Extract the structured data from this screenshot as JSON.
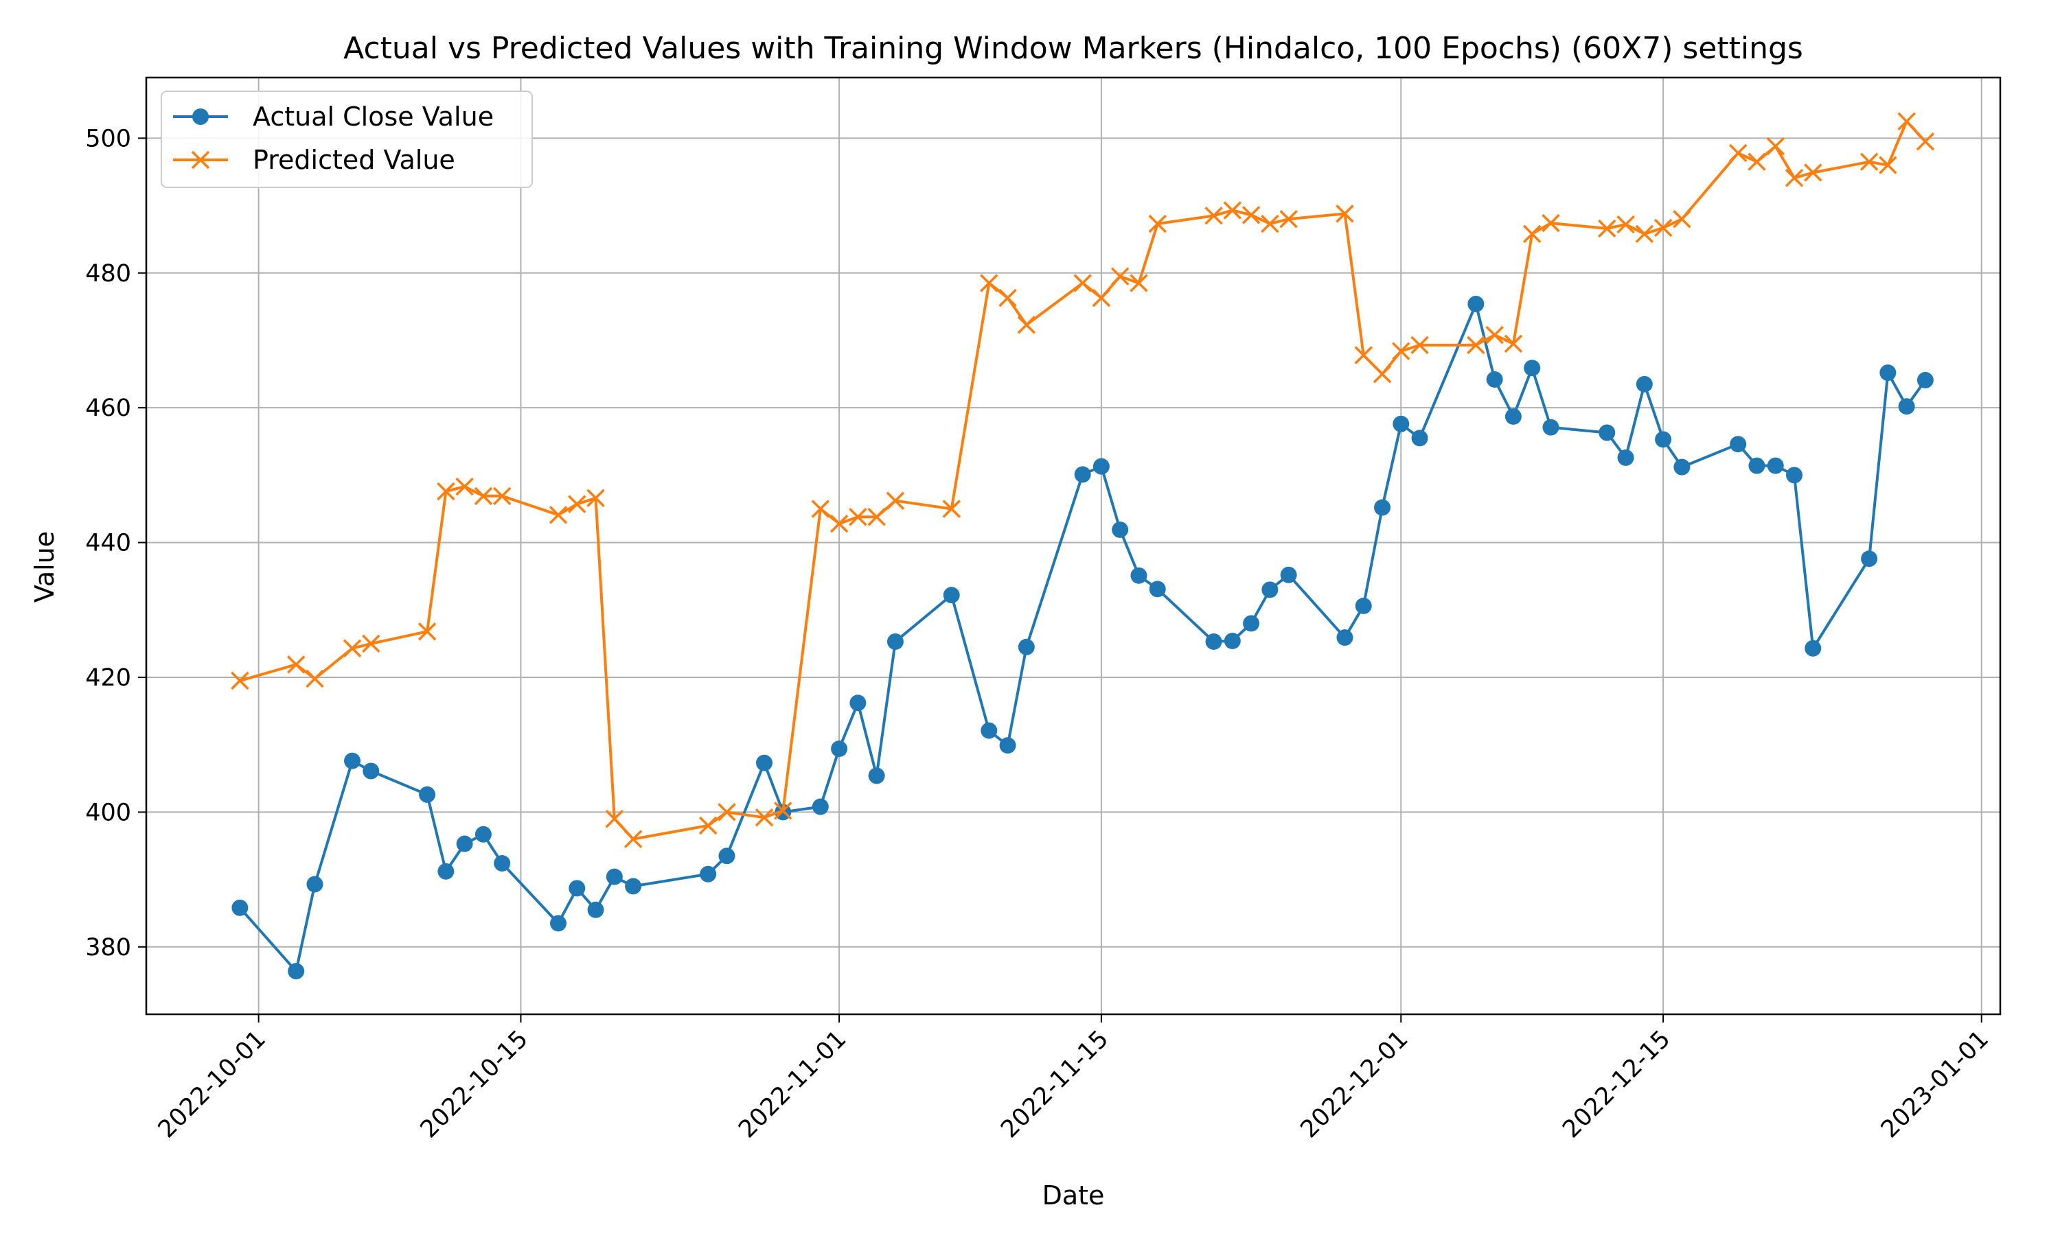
{
  "chart_data": {
    "type": "line",
    "title": "Actual vs Predicted Values with Training Window Markers (Hindalco, 100 Epochs) (60X7) settings",
    "xlabel": "Date",
    "ylabel": "Value",
    "x_tick_labels": [
      "2022-10-01",
      "2022-10-15",
      "2022-11-01",
      "2022-11-15",
      "2022-12-01",
      "2022-12-15",
      "2023-01-01"
    ],
    "y_ticks": [
      380,
      400,
      420,
      440,
      460,
      480,
      500
    ],
    "xlim": [
      "2022-09-25",
      "2023-01-02"
    ],
    "ylim": [
      370,
      509
    ],
    "grid": true,
    "legend_position": "upper-left",
    "x": [
      "2022-09-30",
      "2022-10-03",
      "2022-10-04",
      "2022-10-06",
      "2022-10-07",
      "2022-10-10",
      "2022-10-11",
      "2022-10-12",
      "2022-10-13",
      "2022-10-14",
      "2022-10-17",
      "2022-10-18",
      "2022-10-19",
      "2022-10-20",
      "2022-10-21",
      "2022-10-25",
      "2022-10-26",
      "2022-10-28",
      "2022-10-29",
      "2022-10-31",
      "2022-11-01",
      "2022-11-02",
      "2022-11-03",
      "2022-11-04",
      "2022-11-07",
      "2022-11-09",
      "2022-11-10",
      "2022-11-11",
      "2022-11-14",
      "2022-11-15",
      "2022-11-16",
      "2022-11-17",
      "2022-11-18",
      "2022-11-21",
      "2022-11-22",
      "2022-11-23",
      "2022-11-24",
      "2022-11-25",
      "2022-11-28",
      "2022-11-29",
      "2022-11-30",
      "2022-12-01",
      "2022-12-02",
      "2022-12-05",
      "2022-12-06",
      "2022-12-07",
      "2022-12-08",
      "2022-12-09",
      "2022-12-12",
      "2022-12-13",
      "2022-12-14",
      "2022-12-15",
      "2022-12-16",
      "2022-12-19",
      "2022-12-20",
      "2022-12-21",
      "2022-12-22",
      "2022-12-23",
      "2022-12-26",
      "2022-12-27",
      "2022-12-28",
      "2022-12-29"
    ],
    "series": [
      {
        "name": "Actual Close Value",
        "color": "#1f77b4",
        "marker": "circle",
        "values": [
          385.8,
          376.4,
          389.3,
          407.6,
          406.1,
          402.6,
          391.2,
          395.3,
          396.7,
          392.4,
          383.5,
          388.7,
          385.5,
          390.4,
          389.0,
          390.8,
          393.5,
          407.3,
          400.0,
          400.8,
          409.4,
          416.2,
          405.4,
          425.3,
          432.2,
          412.1,
          409.9,
          424.5,
          450.1,
          451.3,
          441.9,
          435.1,
          433.1,
          425.3,
          425.4,
          428.0,
          433.0,
          435.2,
          425.9,
          430.6,
          445.2,
          457.6,
          455.5,
          475.4,
          464.2,
          458.7,
          465.9,
          457.1,
          456.3,
          452.6,
          463.5,
          455.3,
          451.2,
          454.6,
          451.4,
          451.4,
          450.0,
          424.3,
          437.6,
          465.2,
          460.2,
          464.1
        ]
      },
      {
        "name": "Predicted Value",
        "color": "#ff7f0e",
        "marker": "x",
        "values": [
          419.5,
          421.9,
          419.8,
          424.3,
          425.0,
          426.8,
          447.6,
          448.3,
          446.9,
          446.9,
          444.1,
          445.7,
          446.6,
          399.0,
          396.0,
          398.0,
          400.0,
          399.2,
          400.2,
          445.0,
          442.8,
          443.8,
          443.8,
          446.2,
          445.0,
          478.5,
          476.3,
          472.3,
          478.5,
          476.3,
          479.5,
          478.5,
          487.3,
          488.5,
          489.3,
          488.6,
          487.3,
          488.0,
          488.8,
          467.8,
          465.0,
          468.4,
          469.3,
          469.3,
          470.8,
          469.5,
          485.8,
          487.4,
          486.6,
          487.2,
          485.8,
          486.7,
          488.0,
          497.8,
          496.5,
          498.8,
          494.1,
          494.9,
          496.5,
          496.0,
          502.5,
          499.5
        ]
      }
    ]
  }
}
